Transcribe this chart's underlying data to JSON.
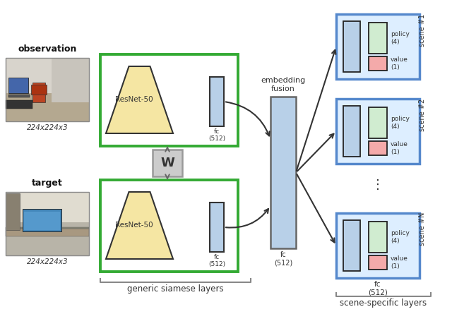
{
  "bg_color": "#ffffff",
  "obs_label": "observation",
  "obs_size": "224x224x3",
  "target_label": "target",
  "target_size": "224x224x3",
  "generic_label": "generic siamese layers",
  "scene_label": "scene-specific layers",
  "embedding_label": "embedding\nfusion",
  "fc_label": "fc\n(512)",
  "W_label": "W",
  "resnet_label": "ResNet-50",
  "green_border": "#33aa33",
  "blue_border": "#5588cc",
  "resnet_fill": "#f5e6a3",
  "fc_small_fill": "#b8d0e8",
  "embedding_fill": "#b8d0e8",
  "scene_box_fill": "#ddeeff",
  "policy_fill": "#d0ecd0",
  "value_fill": "#f4aaaa",
  "W_fill": "#cccccc",
  "W_edge": "#999999",
  "arrow_color": "#333333",
  "text_color": "#111111",
  "dots": "⋮"
}
